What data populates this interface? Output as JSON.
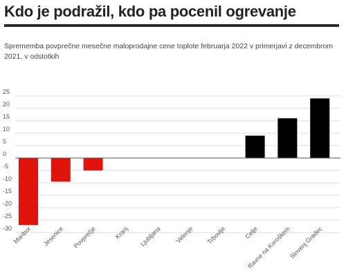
{
  "header": {
    "title": "Kdo je podražil, kdo pa pocenil ogrevanje",
    "subtitle": "Sprememba povprečne mesečne maloprodajne cene toplote februarja 2022 v primerjavi z decembrom 2021, v odstotkih"
  },
  "chart_data": {
    "type": "bar",
    "title": "Kdo je podražil, kdo pa pocenil ogrevanje",
    "subtitle": "Sprememba povprečne mesečne maloprodajne cene toplote februarja 2022 v primerjavi z decembrom 2021, v odstotkih",
    "categories": [
      "Maribor",
      "Jesenice",
      "Povprečje",
      "Kranj",
      "Ljubljana",
      "Velenje",
      "Trbovlje",
      "Celje",
      "Ravne na Koroškem",
      "Slovenj Gradec"
    ],
    "values": [
      -27,
      -9.5,
      -5,
      0,
      0,
      0,
      0,
      9,
      16,
      24
    ],
    "yticks": [
      25,
      20,
      15,
      10,
      5,
      0,
      -5,
      -10,
      -15,
      -20,
      -25,
      -30
    ],
    "ylim": [
      -31,
      27
    ],
    "grid": true,
    "colors": {
      "negative": "#e0140a",
      "positive": "#000000",
      "grid": "#dddddd",
      "zero_line": "#555555"
    }
  }
}
